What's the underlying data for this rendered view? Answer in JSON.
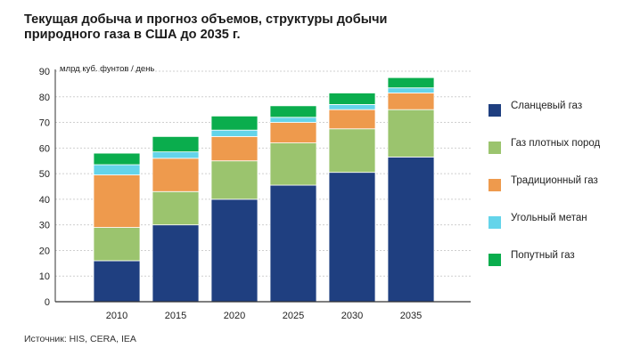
{
  "title": "Текущая добыча и прогноз объемов, структуры добычи природного газа в США до 2035 г.",
  "unit_label": "млрд куб. фунтов / день",
  "source": "Источник: HIS, CERA, IEA",
  "colors": {
    "shale": "#1f3f80",
    "tight": "#9bc46e",
    "conventional": "#ee9a4d",
    "coalbed": "#64d4ea",
    "associated": "#0aad4d",
    "grid": "#cfcfcf",
    "axis": "#333333"
  },
  "legend": [
    {
      "label": "Сланцевый газ",
      "color": "#1f3f80"
    },
    {
      "label": "Газ плотных пород",
      "color": "#9bc46e"
    },
    {
      "label": "Традиционный газ",
      "color": "#ee9a4d"
    },
    {
      "label": "Угольный метан",
      "color": "#64d4ea"
    },
    {
      "label": "Попутный газ",
      "color": "#0aad4d"
    }
  ],
  "chart_data": {
    "type": "bar",
    "stacked": true,
    "title": "Текущая добыча и прогноз объемов, структуры добычи природного газа в США до 2035 г.",
    "ylabel": "млрд куб. фунтов / день",
    "categories": [
      "2010",
      "2015",
      "2020",
      "2025",
      "2030",
      "2035"
    ],
    "ylim": [
      0,
      90
    ],
    "yticks": [
      0,
      10,
      20,
      30,
      40,
      50,
      60,
      70,
      80,
      90
    ],
    "grid": true,
    "legend_position": "right",
    "series": [
      {
        "name": "Сланцевый газ",
        "color": "#1f3f80",
        "values": [
          16,
          30,
          40,
          45.5,
          50.5,
          56.5
        ]
      },
      {
        "name": "Газ плотных пород",
        "color": "#9bc46e",
        "values": [
          13,
          13,
          15,
          16.5,
          17,
          18.5
        ]
      },
      {
        "name": "Традиционный газ",
        "color": "#ee9a4d",
        "values": [
          20.5,
          13,
          9.5,
          8,
          7.5,
          6.5
        ]
      },
      {
        "name": "Угольный метан",
        "color": "#64d4ea",
        "values": [
          4,
          2.5,
          2.5,
          2,
          2,
          2
        ]
      },
      {
        "name": "Попутный газ",
        "color": "#0aad4d",
        "values": [
          4.5,
          6,
          5.5,
          4.5,
          4.5,
          4
        ]
      }
    ]
  }
}
